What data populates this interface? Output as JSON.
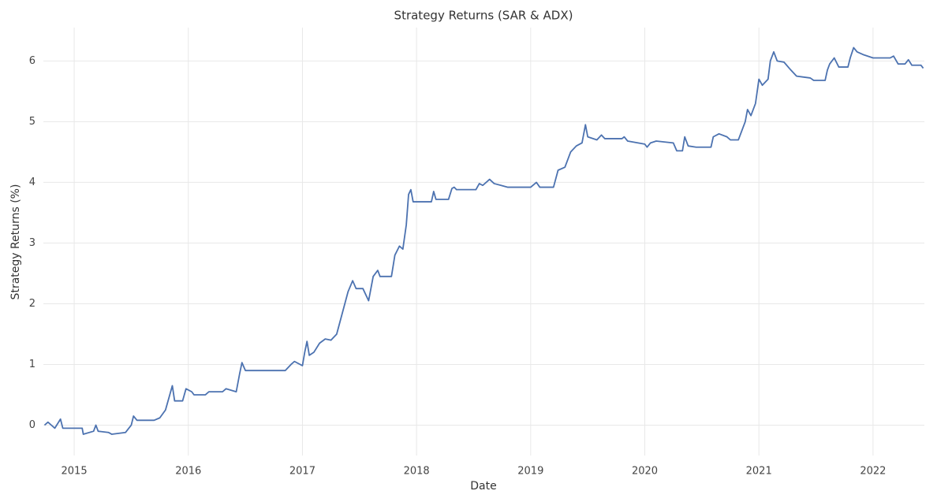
{
  "chart_data": {
    "type": "line",
    "title": "Strategy Returns (SAR & ADX)",
    "x_label": "Date",
    "y_label": "Strategy Returns (%)",
    "grid": true,
    "xlim": [
      2014.73,
      2022.45
    ],
    "xticks": [
      2015,
      2016,
      2017,
      2018,
      2019,
      2020,
      2021,
      2022
    ],
    "ylim": [
      -0.5,
      6.55
    ],
    "yticks": [
      0,
      1,
      2,
      3,
      4,
      5,
      6
    ],
    "x": [
      2014.74,
      2014.77,
      2014.8,
      2014.83,
      2014.88,
      2014.9,
      2015.07,
      2015.08,
      2015.17,
      2015.19,
      2015.21,
      2015.3,
      2015.33,
      2015.45,
      2015.5,
      2015.52,
      2015.55,
      2015.7,
      2015.75,
      2015.8,
      2015.83,
      2015.86,
      2015.88,
      2015.95,
      2015.98,
      2016.03,
      2016.05,
      2016.15,
      2016.18,
      2016.3,
      2016.33,
      2016.42,
      2016.45,
      2016.47,
      2016.5,
      2016.85,
      2016.9,
      2016.93,
      2017.0,
      2017.02,
      2017.04,
      2017.06,
      2017.1,
      2017.15,
      2017.2,
      2017.25,
      2017.3,
      2017.35,
      2017.4,
      2017.44,
      2017.47,
      2017.53,
      2017.58,
      2017.62,
      2017.66,
      2017.68,
      2017.78,
      2017.81,
      2017.85,
      2017.88,
      2017.91,
      2017.93,
      2017.95,
      2017.97,
      2018.13,
      2018.15,
      2018.17,
      2018.28,
      2018.31,
      2018.33,
      2018.35,
      2018.52,
      2018.55,
      2018.58,
      2018.64,
      2018.68,
      2018.8,
      2019.0,
      2019.05,
      2019.08,
      2019.2,
      2019.24,
      2019.3,
      2019.35,
      2019.4,
      2019.45,
      2019.48,
      2019.5,
      2019.58,
      2019.62,
      2019.65,
      2019.8,
      2019.82,
      2019.85,
      2020.0,
      2020.02,
      2020.05,
      2020.1,
      2020.25,
      2020.28,
      2020.33,
      2020.35,
      2020.38,
      2020.45,
      2020.58,
      2020.6,
      2020.65,
      2020.72,
      2020.75,
      2020.82,
      2020.85,
      2020.88,
      2020.9,
      2020.93,
      2020.97,
      2021.0,
      2021.03,
      2021.08,
      2021.1,
      2021.13,
      2021.16,
      2021.22,
      2021.28,
      2021.33,
      2021.45,
      2021.48,
      2021.58,
      2021.6,
      2021.62,
      2021.66,
      2021.7,
      2021.78,
      2021.8,
      2021.83,
      2021.86,
      2021.92,
      2022.0,
      2022.15,
      2022.18,
      2022.22,
      2022.28,
      2022.31,
      2022.34,
      2022.42,
      2022.44
    ],
    "series": [
      {
        "name": "Strategy Returns",
        "color": "#4c72b0",
        "values": [
          0.0,
          0.05,
          0.0,
          -0.05,
          0.1,
          -0.05,
          -0.05,
          -0.15,
          -0.1,
          0.0,
          -0.1,
          -0.12,
          -0.15,
          -0.12,
          0.0,
          0.15,
          0.08,
          0.08,
          0.12,
          0.25,
          0.45,
          0.65,
          0.4,
          0.4,
          0.6,
          0.55,
          0.5,
          0.5,
          0.55,
          0.55,
          0.6,
          0.55,
          0.85,
          1.03,
          0.9,
          0.9,
          1.0,
          1.05,
          0.98,
          1.2,
          1.38,
          1.15,
          1.2,
          1.35,
          1.42,
          1.4,
          1.5,
          1.85,
          2.2,
          2.38,
          2.25,
          2.25,
          2.05,
          2.45,
          2.55,
          2.45,
          2.45,
          2.8,
          2.95,
          2.9,
          3.3,
          3.8,
          3.88,
          3.68,
          3.68,
          3.85,
          3.72,
          3.72,
          3.9,
          3.92,
          3.88,
          3.88,
          3.98,
          3.95,
          4.05,
          3.98,
          3.92,
          3.92,
          4.0,
          3.92,
          3.92,
          4.2,
          4.25,
          4.5,
          4.6,
          4.65,
          4.95,
          4.75,
          4.7,
          4.78,
          4.72,
          4.72,
          4.75,
          4.68,
          4.63,
          4.58,
          4.65,
          4.68,
          4.65,
          4.52,
          4.52,
          4.75,
          4.6,
          4.58,
          4.58,
          4.75,
          4.8,
          4.75,
          4.7,
          4.7,
          4.85,
          5.0,
          5.2,
          5.1,
          5.3,
          5.7,
          5.6,
          5.7,
          6.0,
          6.15,
          6.0,
          5.98,
          5.85,
          5.75,
          5.72,
          5.68,
          5.68,
          5.85,
          5.95,
          6.05,
          5.9,
          5.9,
          6.05,
          6.22,
          6.15,
          6.1,
          6.05,
          6.05,
          6.08,
          5.95,
          5.95,
          6.02,
          5.93,
          5.93,
          5.88
        ]
      }
    ]
  }
}
